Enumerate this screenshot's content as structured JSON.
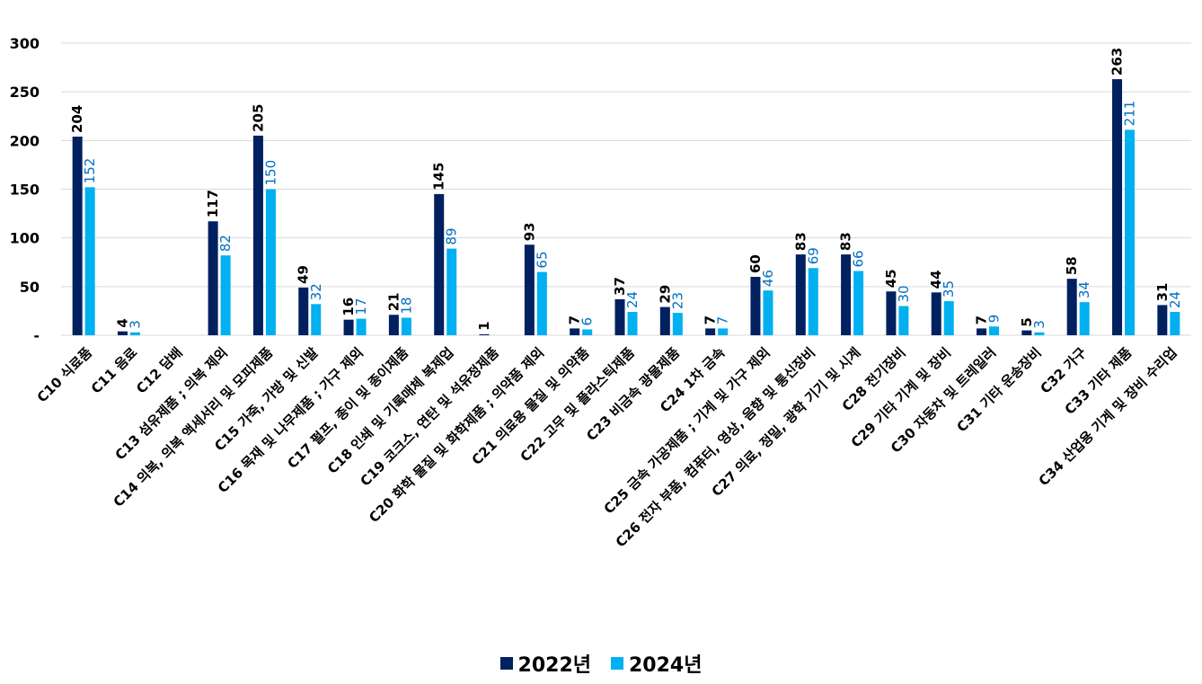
{
  "chart_data": {
    "type": "bar",
    "title": "",
    "xlabel": "",
    "ylabel": "",
    "ylim": [
      0,
      300
    ],
    "yticks": [
      0,
      50,
      100,
      150,
      200,
      250,
      300
    ],
    "ytick_labels": [
      "-",
      "50",
      "100",
      "150",
      "200",
      "250",
      "300"
    ],
    "grid": true,
    "legend_position": "bottom",
    "categories": [
      "C10 식료품",
      "C11 음료",
      "C12 담배",
      "C13 섬유제품 ; 의복 제외",
      "C14 의복, 의복 액세서리 및 모피제품",
      "C15 가죽, 가방 및 신발",
      "C16 목재 및 나무제품 ; 가구 제외",
      "C17 펄프, 종이 및 종이제품",
      "C18 인쇄 및 기록매체 복제업",
      "C19 코크스, 연탄 및 석유정제품",
      "C20 화학 물질 및 화학제품 ; 의약품 제외",
      "C21 의료용 물질 및 의약품",
      "C22 고무 및 플라스틱제품",
      "C23 비금속 광물제품",
      "C24 1차 금속",
      "C25 금속 가공제품 ; 기계 및 가구 제외",
      "C26 전자 부품, 컴퓨터, 영상, 음향 및 통신장비",
      "C27 의료, 정밀, 광학 기기 및 시계",
      "C28 전기장비",
      "C29 기타 기계 및 장비",
      "C30 자동차 및 트레일러",
      "C31 기타 운송장비",
      "C32 가구",
      "C33 기타 제품",
      "C34 산업용 기계 및 장비 수리업"
    ],
    "series": [
      {
        "name": "2022년",
        "color": "#002060",
        "values": [
          204,
          4,
          null,
          117,
          205,
          49,
          16,
          21,
          145,
          1,
          93,
          7,
          37,
          29,
          7,
          60,
          83,
          83,
          45,
          44,
          7,
          5,
          58,
          263,
          31
        ]
      },
      {
        "name": "2024년",
        "color": "#00b0f0",
        "label_color": "#0070c0",
        "values": [
          152,
          3,
          null,
          82,
          150,
          32,
          17,
          18,
          89,
          null,
          65,
          6,
          24,
          23,
          7,
          46,
          69,
          66,
          30,
          35,
          9,
          3,
          34,
          211,
          24
        ]
      }
    ]
  },
  "legend": {
    "items": [
      {
        "label": "2022년",
        "color": "#002060"
      },
      {
        "label": "2024년",
        "color": "#00b0f0"
      }
    ]
  }
}
